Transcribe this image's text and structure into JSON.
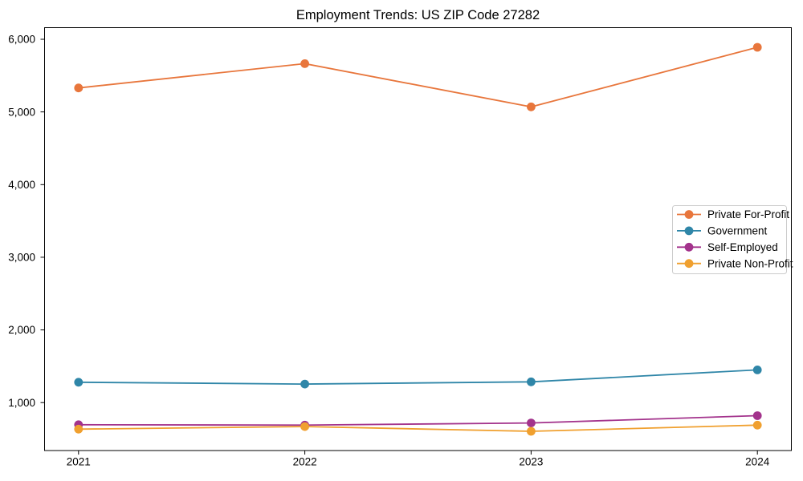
{
  "chart_data": {
    "type": "line",
    "title": "Employment Trends: US ZIP Code 27282",
    "xlabel": "",
    "ylabel": "",
    "categories": [
      "2021",
      "2022",
      "2023",
      "2024"
    ],
    "series": [
      {
        "name": "Private For-Profit",
        "color": "#E8763C",
        "values": [
          5330,
          5665,
          5070,
          5890
        ]
      },
      {
        "name": "Government",
        "color": "#2F86A8",
        "values": [
          1280,
          1255,
          1285,
          1450
        ]
      },
      {
        "name": "Self-Employed",
        "color": "#A3338C",
        "values": [
          695,
          690,
          720,
          820
        ]
      },
      {
        "name": "Private Non-Profit",
        "color": "#F0A02F",
        "values": [
          635,
          670,
          605,
          690
        ]
      }
    ],
    "ylim": [
      340,
      6160
    ],
    "yticks": [
      1000,
      2000,
      3000,
      4000,
      5000,
      6000
    ],
    "ytick_labels": [
      "1,000",
      "2,000",
      "3,000",
      "4,000",
      "5,000",
      "6,000"
    ],
    "grid": false,
    "legend_position": "center-right",
    "marker": "circle",
    "spine_color": "#000000"
  }
}
